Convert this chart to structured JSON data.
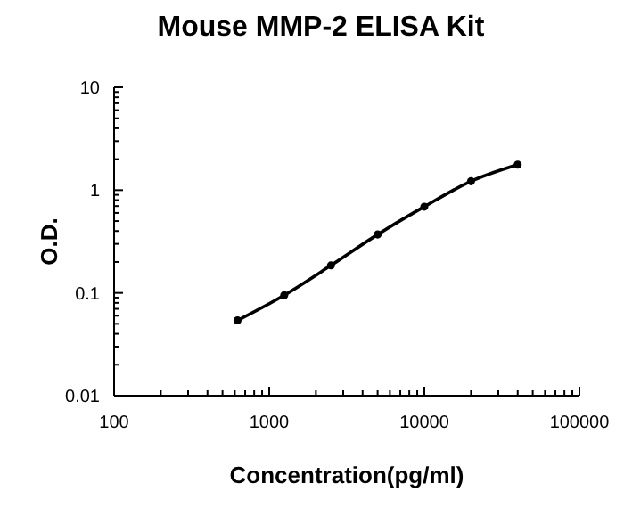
{
  "chart_data": {
    "type": "line",
    "title": "Mouse MMP-2 ELISA Kit",
    "xlabel": "Concentration(pg/ml)",
    "ylabel": "O.D.",
    "log": "xy",
    "marker": "circle",
    "line_style": "solid",
    "xlim": [
      100,
      100000
    ],
    "ylim": [
      0.01,
      10
    ],
    "xticks": [
      100,
      {
        "value": 200,
        "label": null
      },
      {
        "value": 300,
        "label": null
      },
      {
        "value": 400,
        "label": null
      },
      {
        "value": 500,
        "label": null
      },
      {
        "value": 600,
        "label": null
      },
      {
        "value": 700,
        "label": null
      },
      {
        "value": 800,
        "label": null
      },
      {
        "value": 900,
        "label": null
      },
      1000,
      {
        "value": 2000,
        "label": null
      },
      {
        "value": 3000,
        "label": null
      },
      {
        "value": 4000,
        "label": null
      },
      {
        "value": 5000,
        "label": null
      },
      {
        "value": 6000,
        "label": null
      },
      {
        "value": 7000,
        "label": null
      },
      {
        "value": 8000,
        "label": null
      },
      {
        "value": 9000,
        "label": null
      },
      10000,
      {
        "value": 20000,
        "label": null
      },
      {
        "value": 30000,
        "label": null
      },
      {
        "value": 40000,
        "label": null
      },
      {
        "value": 50000,
        "label": null
      },
      {
        "value": 60000,
        "label": null
      },
      {
        "value": 70000,
        "label": null
      },
      {
        "value": 80000,
        "label": null
      },
      {
        "value": 90000,
        "label": null
      },
      100000
    ],
    "yticks": [
      0.01,
      {
        "value": 0.02,
        "label": null
      },
      {
        "value": 0.03,
        "label": null
      },
      {
        "value": 0.04,
        "label": null
      },
      {
        "value": 0.05,
        "label": null
      },
      {
        "value": 0.06,
        "label": null
      },
      {
        "value": 0.07,
        "label": null
      },
      {
        "value": 0.08,
        "label": null
      },
      {
        "value": 0.09,
        "label": null
      },
      0.1,
      {
        "value": 0.2,
        "label": null
      },
      {
        "value": 0.3,
        "label": null
      },
      {
        "value": 0.4,
        "label": null
      },
      {
        "value": 0.5,
        "label": null
      },
      {
        "value": 0.6,
        "label": null
      },
      {
        "value": 0.7,
        "label": null
      },
      {
        "value": 0.8,
        "label": null
      },
      {
        "value": 0.9,
        "label": null
      },
      1,
      {
        "value": 2,
        "label": null
      },
      {
        "value": 3,
        "label": null
      },
      {
        "value": 4,
        "label": null
      },
      {
        "value": 5,
        "label": null
      },
      {
        "value": 6,
        "label": null
      },
      {
        "value": 7,
        "label": null
      },
      {
        "value": 8,
        "label": null
      },
      {
        "value": 9,
        "label": null
      },
      10
    ],
    "x": [
      625,
      1250,
      2500,
      5000,
      10000,
      20000,
      40000
    ],
    "series": [
      {
        "color": "#000000",
        "values": [
          0.054,
          0.095,
          0.185,
          0.37,
          0.69,
          1.22,
          1.77
        ]
      }
    ]
  }
}
